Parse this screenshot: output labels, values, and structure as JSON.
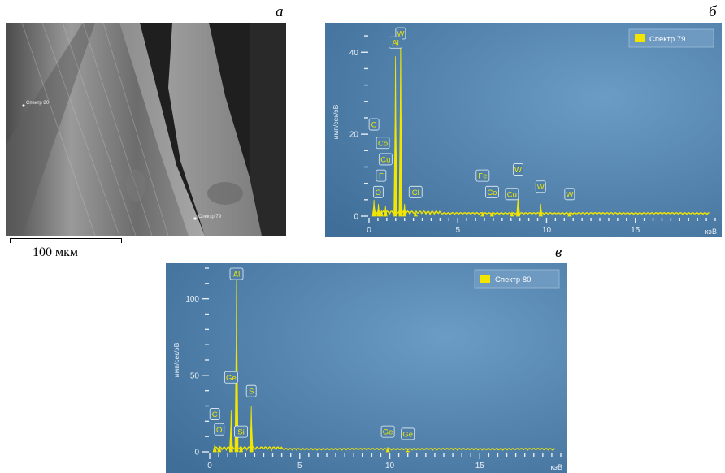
{
  "panels": {
    "a": "a",
    "b": "б",
    "c": "в"
  },
  "sem": {
    "labels": [
      "Спектр 80",
      "Спектр 79"
    ],
    "scale_text": "100 мкм"
  },
  "chart_data": [
    {
      "type": "line",
      "legend": "Спектр 79",
      "legend_color": "#f2e600",
      "ylabel": "имп/сек/эВ",
      "xlabel": "кэВ",
      "xlim": [
        0,
        19.5
      ],
      "ylim": [
        0,
        46
      ],
      "xticks": [
        0,
        5,
        10,
        15
      ],
      "yticks": [
        0,
        20,
        40
      ],
      "peaks": [
        {
          "x": 0.28,
          "y": 4
        },
        {
          "x": 0.53,
          "y": 3
        },
        {
          "x": 0.7,
          "y": 1.5
        },
        {
          "x": 0.93,
          "y": 2.5
        },
        {
          "x": 1.49,
          "y": 39
        },
        {
          "x": 1.78,
          "y": 45
        },
        {
          "x": 2.0,
          "y": 3
        },
        {
          "x": 2.63,
          "y": 0.8
        },
        {
          "x": 6.4,
          "y": 1
        },
        {
          "x": 6.93,
          "y": 0.8
        },
        {
          "x": 8.05,
          "y": 1
        },
        {
          "x": 8.4,
          "y": 6
        },
        {
          "x": 9.67,
          "y": 3
        },
        {
          "x": 11.3,
          "y": 0.8
        }
      ],
      "annotations": [
        {
          "text": "W",
          "x": 1.78,
          "y": 47
        },
        {
          "text": "Al",
          "x": 1.49,
          "y": 41
        },
        {
          "text": "C",
          "x": 0.28,
          "y": 21
        },
        {
          "text": "Co",
          "x": 0.78,
          "y": 16.5
        },
        {
          "text": "Cu",
          "x": 0.93,
          "y": 12.5
        },
        {
          "text": "F",
          "x": 0.68,
          "y": 8.5
        },
        {
          "text": "O",
          "x": 0.52,
          "y": 4.5
        },
        {
          "text": "Cl",
          "x": 2.62,
          "y": 4.5
        },
        {
          "text": "Fe",
          "x": 6.4,
          "y": 8.5
        },
        {
          "text": "Co",
          "x": 6.93,
          "y": 4.5
        },
        {
          "text": "Cu",
          "x": 8.05,
          "y": 4
        },
        {
          "text": "W",
          "x": 8.4,
          "y": 10
        },
        {
          "text": "W",
          "x": 9.67,
          "y": 5.8
        },
        {
          "text": "W",
          "x": 11.3,
          "y": 4
        }
      ]
    },
    {
      "type": "line",
      "legend": "Спектр 80",
      "legend_color": "#f2e600",
      "ylabel": "имп/сек/эВ",
      "xlabel": "кэВ",
      "xlim": [
        0,
        19.5
      ],
      "ylim": [
        0,
        120
      ],
      "xticks": [
        0,
        5,
        10,
        15
      ],
      "yticks": [
        0,
        50,
        100
      ],
      "peaks": [
        {
          "x": 0.28,
          "y": 5
        },
        {
          "x": 0.53,
          "y": 4
        },
        {
          "x": 1.19,
          "y": 27
        },
        {
          "x": 1.49,
          "y": 120
        },
        {
          "x": 1.74,
          "y": 4
        },
        {
          "x": 2.31,
          "y": 30
        },
        {
          "x": 9.89,
          "y": 3
        },
        {
          "x": 11.0,
          "y": 0.8
        }
      ],
      "annotations": [
        {
          "text": "Al",
          "x": 1.49,
          "y": 121
        },
        {
          "text": "Ge",
          "x": 1.19,
          "y": 45
        },
        {
          "text": "S",
          "x": 2.31,
          "y": 36
        },
        {
          "text": "C",
          "x": 0.28,
          "y": 21
        },
        {
          "text": "O",
          "x": 0.53,
          "y": 11
        },
        {
          "text": "Si",
          "x": 1.74,
          "y": 9.5
        },
        {
          "text": "Ge",
          "x": 9.89,
          "y": 9.5
        },
        {
          "text": "Ge",
          "x": 11.0,
          "y": 8
        }
      ]
    }
  ]
}
